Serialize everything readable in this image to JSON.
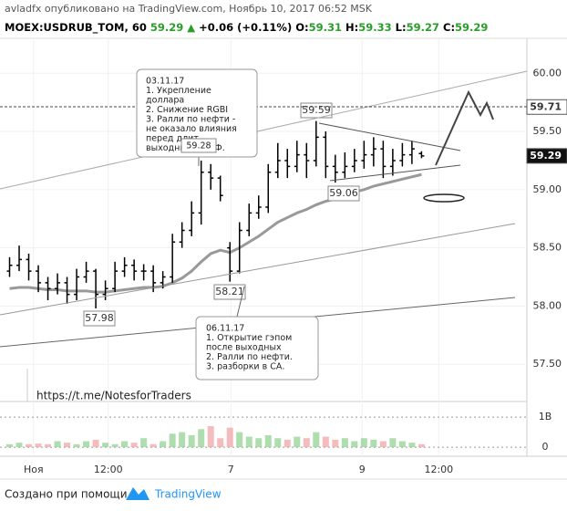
{
  "header": {
    "author_line": "avladfx опубликовано на TradingView.com, Ноябрь 10, 2017 06:52 MSK",
    "symbol": "MOEX:USDRUB_TOM, 60",
    "last": "59.29",
    "arrow": "▲",
    "change": "+0.06 (+0.11%)",
    "ohlc": [
      {
        "label": "O:",
        "value": "59.31"
      },
      {
        "label": "H:",
        "value": "59.33"
      },
      {
        "label": "L:",
        "value": "59.27"
      },
      {
        "label": "C:",
        "value": "59.29"
      }
    ]
  },
  "chart_data": {
    "type": "ohlc",
    "xlim": [
      -1,
      54
    ],
    "xticks": [
      {
        "value": 2.5,
        "label": "Ноя"
      },
      {
        "value": 10.3,
        "label": "12:00"
      },
      {
        "value": 23.1,
        "label": "7"
      },
      {
        "value": 36.8,
        "label": "9"
      },
      {
        "value": 44.8,
        "label": "12:00"
      }
    ],
    "ylim": [
      57.18,
      60.3
    ],
    "yticks": [
      {
        "value": 60,
        "label": "60.00"
      },
      {
        "value": 59.5,
        "label": "59.50"
      },
      {
        "value": 59,
        "label": "59.00"
      },
      {
        "value": 58.5,
        "label": "58.50"
      },
      {
        "value": 58,
        "label": "58.00"
      },
      {
        "value": 57.5,
        "label": "57.50"
      }
    ],
    "grid": true,
    "color": "#000000",
    "up_color": "#8ccf8c",
    "down_color": "#f0a0a0",
    "open": [
      58.3,
      58.35,
      58.4,
      58.3,
      58.2,
      58.15,
      58.2,
      58.1,
      58.25,
      58.3,
      58.1,
      58.15,
      58.3,
      58.35,
      58.3,
      58.3,
      58.2,
      58.25,
      58.55,
      58.65,
      58.8,
      59.15,
      59.1,
      58.5,
      58.3,
      58.65,
      58.8,
      58.85,
      59.15,
      59.25,
      59.2,
      59.3,
      59.25,
      59.45,
      59.2,
      59.15,
      59.2,
      59.25,
      59.3,
      59.35,
      59.2,
      59.25,
      59.3,
      59.31
    ],
    "high": [
      58.42,
      58.52,
      58.45,
      58.35,
      58.25,
      58.28,
      58.25,
      58.32,
      58.38,
      58.32,
      58.22,
      58.38,
      58.42,
      58.4,
      58.36,
      58.35,
      58.3,
      58.62,
      58.72,
      58.9,
      59.25,
      59.22,
      59.12,
      58.55,
      58.72,
      58.88,
      58.95,
      59.22,
      59.4,
      59.35,
      59.42,
      59.4,
      59.59,
      59.5,
      59.3,
      59.32,
      59.35,
      59.42,
      59.45,
      59.42,
      59.35,
      59.4,
      59.42,
      59.33
    ],
    "low": [
      58.25,
      58.3,
      58.22,
      58.12,
      58.05,
      58.1,
      58.02,
      58.05,
      58.2,
      57.98,
      58.05,
      58.12,
      58.25,
      58.22,
      58.22,
      58.12,
      58.15,
      58.2,
      58.5,
      58.6,
      58.7,
      59.0,
      58.9,
      58.21,
      58.28,
      58.6,
      58.75,
      58.8,
      59.1,
      59.1,
      59.15,
      59.1,
      59.2,
      59.1,
      59.06,
      59.1,
      59.15,
      59.18,
      59.2,
      59.1,
      59.12,
      59.2,
      59.22,
      59.27
    ],
    "close": [
      58.35,
      58.4,
      58.3,
      58.2,
      58.15,
      58.2,
      58.1,
      58.25,
      58.3,
      58.1,
      58.15,
      58.3,
      58.35,
      58.3,
      58.3,
      58.2,
      58.25,
      58.55,
      58.65,
      58.8,
      59.15,
      59.1,
      58.95,
      58.3,
      58.65,
      58.8,
      58.85,
      59.15,
      59.25,
      59.2,
      59.3,
      59.25,
      59.45,
      59.2,
      59.15,
      59.2,
      59.25,
      59.3,
      59.35,
      59.2,
      59.25,
      59.3,
      59.35,
      59.29
    ],
    "ma": {
      "color": "#999999",
      "values": [
        58.15,
        58.16,
        58.16,
        58.15,
        58.14,
        58.14,
        58.13,
        58.13,
        58.13,
        58.12,
        58.12,
        58.13,
        58.14,
        58.15,
        58.16,
        58.16,
        58.17,
        58.2,
        58.24,
        58.3,
        58.38,
        58.45,
        58.48,
        58.46,
        58.5,
        58.55,
        58.6,
        58.66,
        58.72,
        58.76,
        58.8,
        58.83,
        58.87,
        58.9,
        58.92,
        58.95,
        58.98,
        59.0,
        59.03,
        59.05,
        59.07,
        59.09,
        59.11,
        59.13
      ]
    },
    "volume": {
      "axis": "y2",
      "values": [
        0.1,
        0.15,
        0.1,
        0.12,
        0.1,
        0.2,
        0.15,
        0.1,
        0.2,
        0.25,
        0.15,
        0.1,
        0.2,
        0.15,
        0.3,
        0.1,
        0.2,
        0.45,
        0.5,
        0.4,
        0.6,
        0.7,
        0.3,
        0.65,
        0.5,
        0.35,
        0.3,
        0.4,
        0.3,
        0.25,
        0.35,
        0.3,
        0.5,
        0.35,
        0.25,
        0.3,
        0.2,
        0.3,
        0.25,
        0.2,
        0.3,
        0.2,
        0.15,
        0.1
      ]
    },
    "y2lim": [
      -0.3,
      1.52
    ],
    "y2ticks": [
      {
        "value": 1,
        "label": "1B"
      },
      0
    ],
    "price_tags": [
      {
        "value": 59.71,
        "label": "59.71"
      },
      {
        "value": 59.29,
        "label": "59.29"
      }
    ],
    "labels": [
      "59.59",
      "59.06",
      "58.21",
      "57.98"
    ],
    "note1": [
      "03.11.17",
      "1. Укрепление",
      "доллара",
      "2. Снижение RGBI",
      "3. Ралли по нефти -",
      "не оказало влияния",
      "перед длит.",
      "выходными в РФ."
    ],
    "overlap_label": "59.28",
    "note2": [
      "06.11.17",
      "1. Открытие гэпом",
      "после выходных",
      "2. Ралли по нефти.",
      "3. разборки в СА."
    ],
    "watermark": "https://t.me/NotesforTraders"
  },
  "footer": {
    "made_with": "Создано при помощи",
    "brand": "TradingView"
  }
}
